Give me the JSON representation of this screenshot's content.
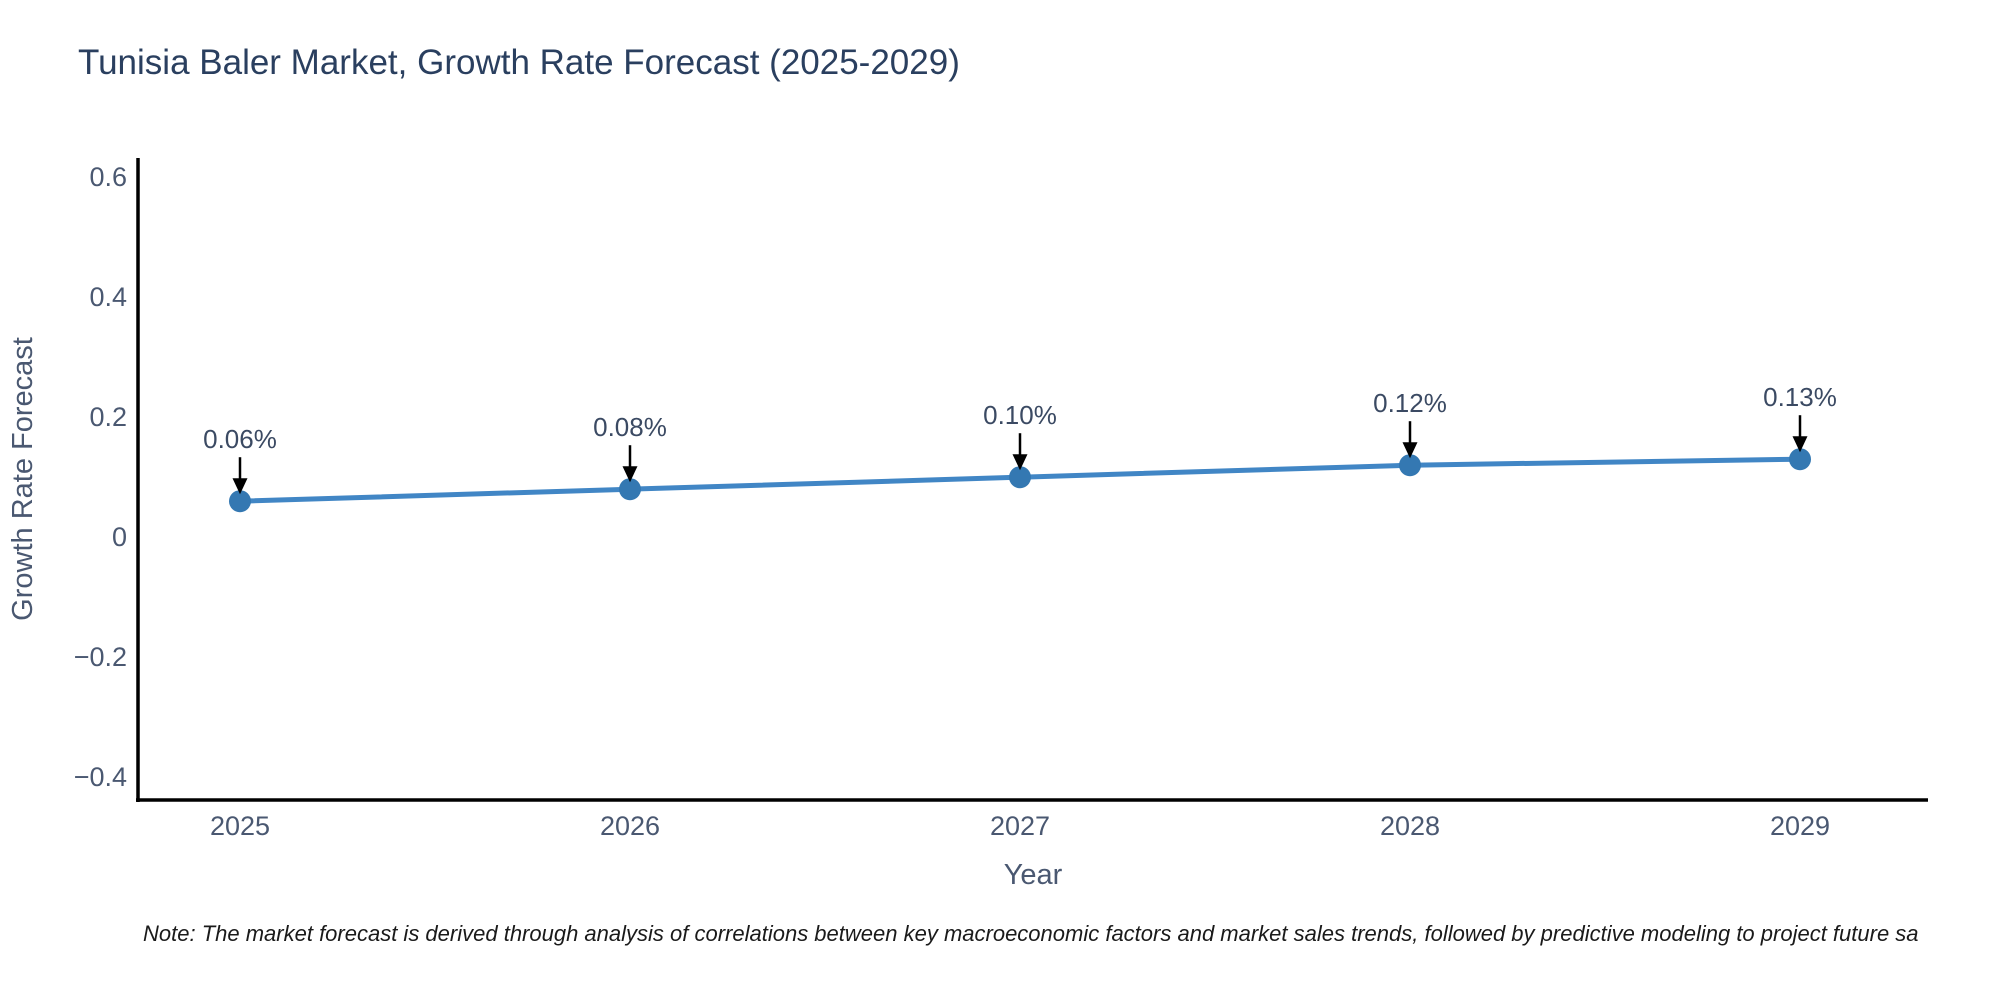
{
  "page": {
    "background": "#ffffff"
  },
  "chart_data": {
    "type": "line",
    "title": "Tunisia Baler Market, Growth Rate Forecast (2025-2029)",
    "xlabel": "Year",
    "ylabel": "Growth Rate Forecast",
    "categories": [
      "2025",
      "2026",
      "2027",
      "2028",
      "2029"
    ],
    "series": [
      {
        "name": "Growth Rate Forecast",
        "values": [
          0.06,
          0.08,
          0.1,
          0.12,
          0.13
        ],
        "point_labels": [
          "0.06%",
          "0.08%",
          "0.10%",
          "0.12%",
          "0.13%"
        ]
      }
    ],
    "yticks": [
      0.6,
      0.4,
      0.2,
      0,
      -0.2,
      -0.4
    ],
    "ytick_labels": [
      "0.6",
      "0.4",
      "0.2",
      "0",
      "−0.2",
      "−0.4"
    ],
    "ylim": [
      -0.438,
      0.632
    ],
    "grid": false,
    "legend_position": "none",
    "annotations_style": "down-arrow",
    "colors": {
      "line": "#4186c5",
      "marker": "#3478b2",
      "axis": "#000000",
      "tick_text": "#4a5871",
      "annotation_text": "#3b4a63",
      "title_text": "#2a3f5f",
      "arrow": "#000000"
    }
  },
  "note": {
    "text": "Note: The market forecast is derived through analysis of correlations between key macroeconomic factors and market sales trends, followed by predictive modeling to project future sa"
  }
}
